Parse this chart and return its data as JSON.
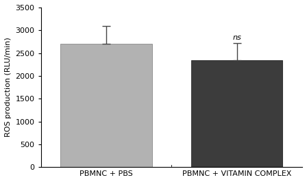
{
  "categories": [
    "PBMNC + PBS",
    "PBMNC + VITAMIN COMPLEX"
  ],
  "values": [
    2700,
    2350
  ],
  "errors_upper": [
    400,
    370
  ],
  "bar_colors": [
    "#b2b2b2",
    "#3c3c3c"
  ],
  "bar_edgecolors": [
    "#888888",
    "#222222"
  ],
  "ylabel": "ROS production (RLU/min)",
  "ylim": [
    0,
    3500
  ],
  "yticks": [
    0,
    500,
    1000,
    1500,
    2000,
    2500,
    3000,
    3500
  ],
  "annotation": "ns",
  "annotation_bar_index": 1,
  "bar_width": 0.35,
  "capsize": 4,
  "error_color": "#444444",
  "tick_fontsize": 8,
  "label_fontsize": 8,
  "annotation_fontsize": 8,
  "x_positions": [
    0.25,
    0.75
  ],
  "xlim": [
    0.0,
    1.0
  ]
}
